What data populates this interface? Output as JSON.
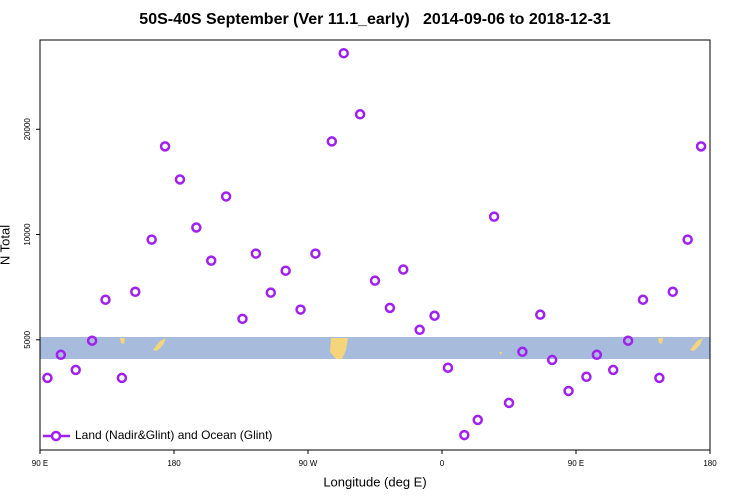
{
  "chart_data": {
    "type": "scatter",
    "title": "50S-40S September (Ver 11.1_early)   2014-09-06 to 2018-12-31",
    "x_label": "Longitude (deg E)",
    "y_label": "N Total",
    "x": [
      95,
      104,
      114,
      125,
      134,
      145,
      154,
      165,
      174,
      184,
      195,
      205,
      215,
      226,
      235,
      245,
      255,
      265,
      275,
      286,
      294,
      305,
      315,
      325,
      334,
      345,
      355,
      364,
      375,
      384,
      395,
      405,
      414,
      426,
      434,
      445,
      457,
      464,
      475,
      485,
      495,
      506,
      515,
      525,
      534
    ],
    "series": [
      {
        "name": "Land (Nadir&Glint) and Ocean (Glint)",
        "color": "#a020f0",
        "values": [
          3890,
          4530,
          4100,
          4970,
          6510,
          3890,
          6860,
          9670,
          17870,
          14370,
          10470,
          8420,
          12850,
          5740,
          8820,
          6820,
          7880,
          6100,
          8820,
          18460,
          33000,
          22070,
          7380,
          6170,
          7940,
          5340,
          5860,
          4160,
          2670,
          2950,
          11250,
          3300,
          4620,
          5900,
          4380,
          3570,
          3920,
          4530,
          4100,
          4970,
          6510,
          3890,
          6860,
          9670,
          17870
        ]
      }
    ],
    "xlim": [
      90,
      540
    ],
    "xticks": [
      {
        "value": 90,
        "label": "90 E"
      },
      180,
      {
        "value": 270,
        "label": "90 W"
      },
      {
        "value": 360,
        "label": "0"
      },
      {
        "value": 450,
        "label": "90 E"
      },
      {
        "value": 540,
        "label": "180"
      }
    ],
    "ylim": [
      2420,
      36000
    ],
    "yticks": [
      5000,
      10000,
      20000
    ],
    "y_log": true,
    "grid": false,
    "legend": "bottom-left"
  }
}
